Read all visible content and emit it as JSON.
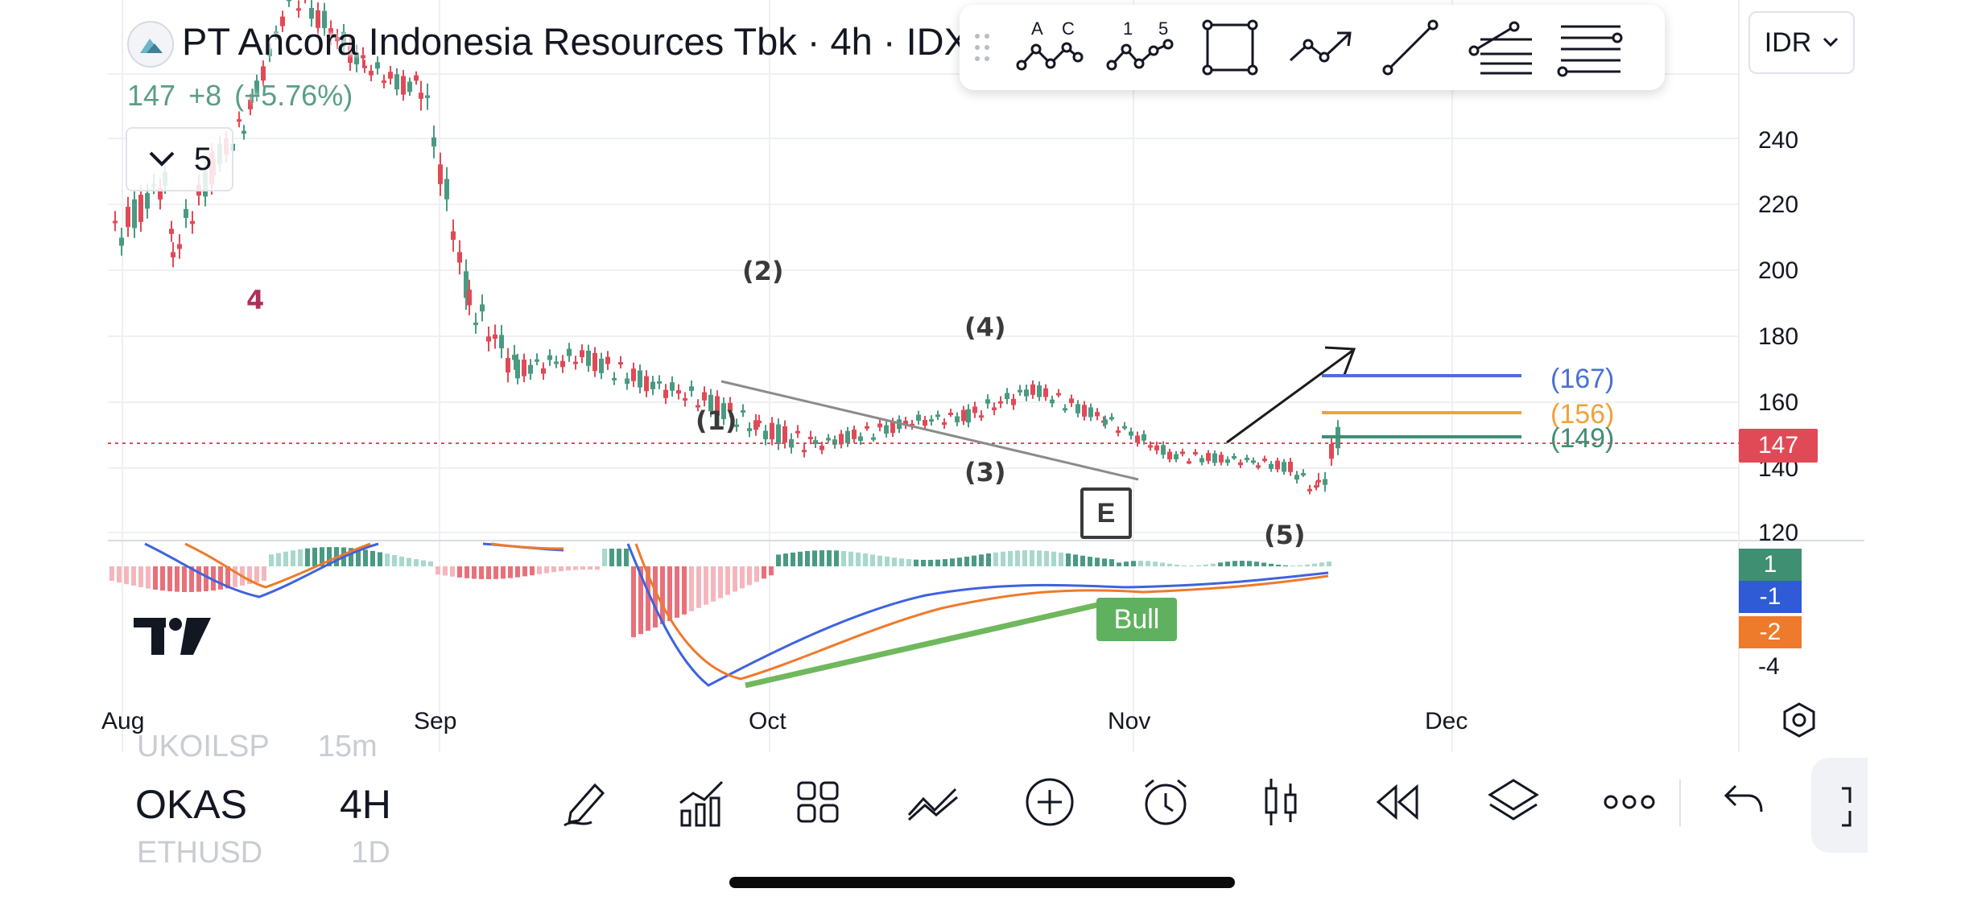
{
  "header": {
    "title": "PT Ancora Indonesia Resources Tbk · 4h · IDX",
    "price": "147",
    "change": "+8",
    "change_pct": "(+5.76%)",
    "collapse_count": "5"
  },
  "currency": {
    "label": "IDR"
  },
  "drawing_toolbar": {
    "tools": [
      {
        "icon": "abc-pattern-icon",
        "label_a": "A",
        "label_c": "C"
      },
      {
        "icon": "elliott-wave-icon",
        "label_1": "1",
        "label_5": "5"
      },
      {
        "icon": "rectangle-icon"
      },
      {
        "icon": "path-arrow-icon"
      },
      {
        "icon": "trend-line-icon"
      },
      {
        "icon": "fib-retracement-icon"
      },
      {
        "icon": "horizontal-lines-icon"
      }
    ]
  },
  "chart_data": {
    "type": "candlestick",
    "symbol": "PT Ancora Indonesia Resources Tbk",
    "interval": "4h",
    "exchange": "IDX",
    "price_axis": {
      "ticks": [
        "240",
        "220",
        "200",
        "180",
        "160",
        "140",
        "120"
      ],
      "range": [
        116,
        262
      ]
    },
    "time_axis": {
      "ticks": [
        "Aug",
        "Sep",
        "Oct",
        "Nov",
        "Dec"
      ]
    },
    "last_price": 147,
    "levels": [
      {
        "label": "(167)",
        "value": 167,
        "color": "#4a6fd6"
      },
      {
        "label": "(156)",
        "value": 156,
        "color": "#f0a23a"
      },
      {
        "label": "(149)",
        "value": 149,
        "color": "#3f8f73"
      }
    ],
    "wave_labels": [
      "4",
      "(1)",
      "(2)",
      "(3)",
      "(4)",
      "(5)",
      "E"
    ],
    "macd": {
      "ticks": [
        "1",
        "-1",
        "-2",
        "-4"
      ],
      "tag_colors": [
        "#3f8f73",
        "#2f5bd6",
        "#ee7a2b"
      ],
      "divergence_label": "Bull"
    },
    "colors": {
      "up": "#4a9a82",
      "down": "#e04a57",
      "macd_line": "#3e63dd",
      "signal_line": "#ee7a2b",
      "divergence": "#6fb85d"
    }
  },
  "bottom_bar": {
    "ghost_above": {
      "symbol": "UKOILSP",
      "interval": "15m"
    },
    "symbol": "OKAS",
    "interval": "4H",
    "ghost_below": {
      "symbol": "ETHUSD",
      "interval": "1D"
    },
    "icons": [
      "pen-icon",
      "indicators-icon",
      "layouts-icon",
      "compare-icon",
      "add-icon",
      "alarm-icon",
      "candles-icon",
      "replay-icon",
      "layers-icon",
      "more-icon"
    ]
  }
}
